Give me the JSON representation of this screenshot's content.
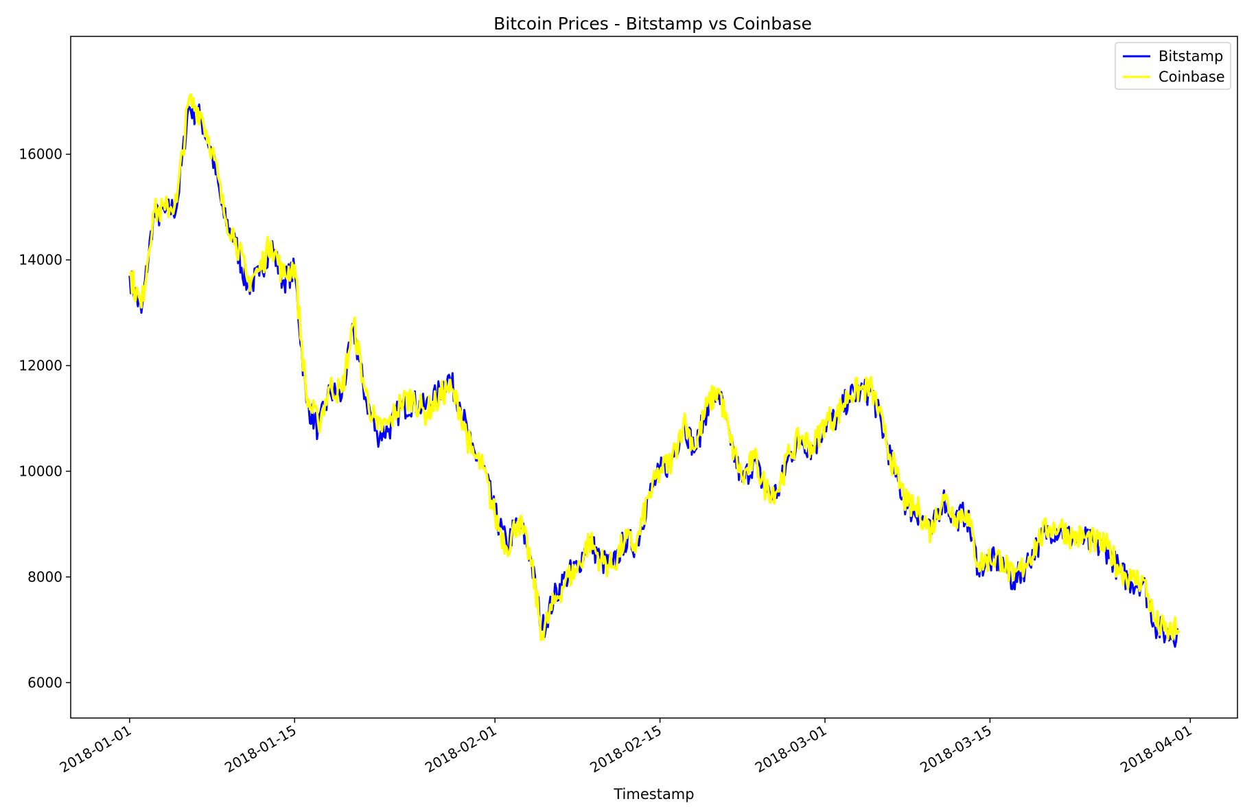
{
  "chart_data": {
    "type": "line",
    "title": "Bitcoin Prices - Bitstamp vs Coinbase",
    "xlabel": "Timestamp",
    "ylabel": "",
    "x_type": "date",
    "xlim": [
      "2017-12-27",
      "2018-04-05"
    ],
    "ylim": [
      5330,
      18230
    ],
    "x_ticks": [
      "2018-01-01",
      "2018-01-15",
      "2018-02-01",
      "2018-02-15",
      "2018-03-01",
      "2018-03-15",
      "2018-04-01"
    ],
    "y_ticks": [
      6000,
      8000,
      10000,
      12000,
      14000,
      16000
    ],
    "grid": false,
    "legend_position": "top-right",
    "series": [
      {
        "name": "Bitstamp",
        "color": "#0000ff",
        "points": [
          [
            "2018-01-01",
            13700
          ],
          [
            "2018-01-02",
            13000
          ],
          [
            "2018-01-03",
            14800
          ],
          [
            "2018-01-04",
            14900
          ],
          [
            "2018-01-05",
            15000
          ],
          [
            "2018-01-06",
            16900
          ],
          [
            "2018-01-07",
            16700
          ],
          [
            "2018-01-08",
            16000
          ],
          [
            "2018-01-09",
            14800
          ],
          [
            "2018-01-10",
            14300
          ],
          [
            "2018-01-11",
            13500
          ],
          [
            "2018-01-12",
            13700
          ],
          [
            "2018-01-13",
            14300
          ],
          [
            "2018-01-14",
            13600
          ],
          [
            "2018-01-15",
            13800
          ],
          [
            "2018-01-16",
            11300
          ],
          [
            "2018-01-17",
            10800
          ],
          [
            "2018-01-18",
            11500
          ],
          [
            "2018-01-19",
            11400
          ],
          [
            "2018-01-20",
            12700
          ],
          [
            "2018-01-21",
            11400
          ],
          [
            "2018-01-22",
            10700
          ],
          [
            "2018-01-23",
            10800
          ],
          [
            "2018-01-24",
            11200
          ],
          [
            "2018-01-25",
            11300
          ],
          [
            "2018-01-26",
            11200
          ],
          [
            "2018-01-27",
            11400
          ],
          [
            "2018-01-28",
            11800
          ],
          [
            "2018-01-29",
            11300
          ],
          [
            "2018-01-30",
            10400
          ],
          [
            "2018-01-31",
            10100
          ],
          [
            "2018-02-01",
            9200
          ],
          [
            "2018-02-02",
            8600
          ],
          [
            "2018-02-03",
            9100
          ],
          [
            "2018-02-04",
            8400
          ],
          [
            "2018-02-05",
            7000
          ],
          [
            "2018-02-06",
            7600
          ],
          [
            "2018-02-07",
            8000
          ],
          [
            "2018-02-08",
            8200
          ],
          [
            "2018-02-09",
            8700
          ],
          [
            "2018-02-10",
            8300
          ],
          [
            "2018-02-11",
            8200
          ],
          [
            "2018-02-12",
            8700
          ],
          [
            "2018-02-13",
            8600
          ],
          [
            "2018-02-14",
            9500
          ],
          [
            "2018-02-15",
            10000
          ],
          [
            "2018-02-16",
            10200
          ],
          [
            "2018-02-17",
            10900
          ],
          [
            "2018-02-18",
            10400
          ],
          [
            "2018-02-19",
            11200
          ],
          [
            "2018-02-20",
            11500
          ],
          [
            "2018-02-21",
            10500
          ],
          [
            "2018-02-22",
            9800
          ],
          [
            "2018-02-23",
            10200
          ],
          [
            "2018-02-24",
            9600
          ],
          [
            "2018-02-25",
            9600
          ],
          [
            "2018-02-26",
            10300
          ],
          [
            "2018-02-27",
            10600
          ],
          [
            "2018-02-28",
            10400
          ],
          [
            "2018-03-01",
            10900
          ],
          [
            "2018-03-02",
            11000
          ],
          [
            "2018-03-03",
            11400
          ],
          [
            "2018-03-04",
            11500
          ],
          [
            "2018-03-05",
            11500
          ],
          [
            "2018-03-06",
            10700
          ],
          [
            "2018-03-07",
            9900
          ],
          [
            "2018-03-08",
            9300
          ],
          [
            "2018-03-09",
            9200
          ],
          [
            "2018-03-10",
            8800
          ],
          [
            "2018-03-11",
            9500
          ],
          [
            "2018-03-12",
            9100
          ],
          [
            "2018-03-13",
            9200
          ],
          [
            "2018-03-14",
            8200
          ],
          [
            "2018-03-15",
            8300
          ],
          [
            "2018-03-16",
            8300
          ],
          [
            "2018-03-17",
            7900
          ],
          [
            "2018-03-18",
            8200
          ],
          [
            "2018-03-19",
            8600
          ],
          [
            "2018-03-20",
            8900
          ],
          [
            "2018-03-21",
            8900
          ],
          [
            "2018-03-22",
            8700
          ],
          [
            "2018-03-23",
            8700
          ],
          [
            "2018-03-24",
            8600
          ],
          [
            "2018-03-25",
            8500
          ],
          [
            "2018-03-26",
            8100
          ],
          [
            "2018-03-27",
            7900
          ],
          [
            "2018-03-28",
            7900
          ],
          [
            "2018-03-29",
            7100
          ],
          [
            "2018-03-30",
            6900
          ],
          [
            "2018-03-31",
            6950
          ]
        ]
      },
      {
        "name": "Coinbase",
        "color": "#ffff00",
        "points": [
          [
            "2018-01-01",
            13750
          ],
          [
            "2018-01-02",
            13100
          ],
          [
            "2018-01-03",
            14900
          ],
          [
            "2018-01-04",
            14950
          ],
          [
            "2018-01-05",
            15100
          ],
          [
            "2018-01-06",
            17000
          ],
          [
            "2018-01-07",
            16800
          ],
          [
            "2018-01-08",
            16100
          ],
          [
            "2018-01-09",
            14900
          ],
          [
            "2018-01-10",
            14400
          ],
          [
            "2018-01-11",
            13600
          ],
          [
            "2018-01-12",
            13800
          ],
          [
            "2018-01-13",
            14350
          ],
          [
            "2018-01-14",
            13700
          ],
          [
            "2018-01-15",
            13900
          ],
          [
            "2018-01-16",
            11400
          ],
          [
            "2018-01-17",
            10900
          ],
          [
            "2018-01-18",
            11600
          ],
          [
            "2018-01-19",
            11500
          ],
          [
            "2018-01-20",
            12800
          ],
          [
            "2018-01-21",
            11500
          ],
          [
            "2018-01-22",
            10800
          ],
          [
            "2018-01-23",
            10900
          ],
          [
            "2018-01-24",
            11300
          ],
          [
            "2018-01-25",
            11400
          ],
          [
            "2018-01-26",
            11100
          ],
          [
            "2018-01-27",
            11300
          ],
          [
            "2018-01-28",
            11600
          ],
          [
            "2018-01-29",
            11200
          ],
          [
            "2018-01-30",
            10350
          ],
          [
            "2018-01-31",
            10050
          ],
          [
            "2018-02-01",
            9150
          ],
          [
            "2018-02-02",
            8550
          ],
          [
            "2018-02-03",
            9100
          ],
          [
            "2018-02-04",
            8350
          ],
          [
            "2018-02-05",
            6900
          ],
          [
            "2018-02-06",
            7500
          ],
          [
            "2018-02-07",
            7950
          ],
          [
            "2018-02-08",
            8150
          ],
          [
            "2018-02-09",
            8700
          ],
          [
            "2018-02-10",
            8300
          ],
          [
            "2018-02-11",
            8200
          ],
          [
            "2018-02-12",
            8700
          ],
          [
            "2018-02-13",
            8600
          ],
          [
            "2018-02-14",
            9500
          ],
          [
            "2018-02-15",
            10000
          ],
          [
            "2018-02-16",
            10200
          ],
          [
            "2018-02-17",
            10950
          ],
          [
            "2018-02-18",
            10450
          ],
          [
            "2018-02-19",
            11250
          ],
          [
            "2018-02-20",
            11550
          ],
          [
            "2018-02-21",
            10550
          ],
          [
            "2018-02-22",
            9850
          ],
          [
            "2018-02-23",
            10250
          ],
          [
            "2018-02-24",
            9650
          ],
          [
            "2018-02-25",
            9650
          ],
          [
            "2018-02-26",
            10350
          ],
          [
            "2018-02-27",
            10650
          ],
          [
            "2018-02-28",
            10450
          ],
          [
            "2018-03-01",
            10950
          ],
          [
            "2018-03-02",
            11050
          ],
          [
            "2018-03-03",
            11450
          ],
          [
            "2018-03-04",
            11550
          ],
          [
            "2018-03-05",
            11550
          ],
          [
            "2018-03-06",
            10750
          ],
          [
            "2018-03-07",
            9950
          ],
          [
            "2018-03-08",
            9350
          ],
          [
            "2018-03-09",
            9250
          ],
          [
            "2018-03-10",
            8850
          ],
          [
            "2018-03-11",
            9550
          ],
          [
            "2018-03-12",
            9150
          ],
          [
            "2018-03-13",
            9250
          ],
          [
            "2018-03-14",
            8250
          ],
          [
            "2018-03-15",
            8350
          ],
          [
            "2018-03-16",
            8350
          ],
          [
            "2018-03-17",
            7950
          ],
          [
            "2018-03-18",
            8250
          ],
          [
            "2018-03-19",
            8650
          ],
          [
            "2018-03-20",
            8950
          ],
          [
            "2018-03-21",
            8950
          ],
          [
            "2018-03-22",
            8750
          ],
          [
            "2018-03-23",
            8750
          ],
          [
            "2018-03-24",
            8650
          ],
          [
            "2018-03-25",
            8550
          ],
          [
            "2018-03-26",
            8150
          ],
          [
            "2018-03-27",
            7950
          ],
          [
            "2018-03-28",
            7950
          ],
          [
            "2018-03-29",
            7150
          ],
          [
            "2018-03-30",
            6950
          ],
          [
            "2018-03-31",
            7000
          ]
        ]
      }
    ]
  }
}
